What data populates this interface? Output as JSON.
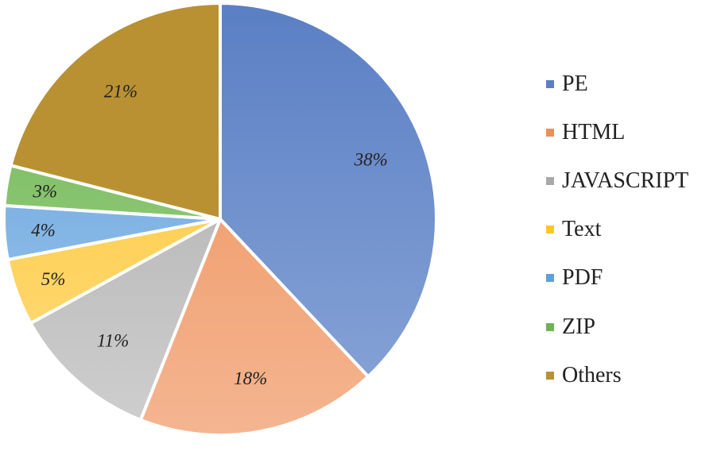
{
  "chart_data": {
    "type": "pie",
    "categories": [
      "PE",
      "HTML",
      "JAVASCRIPT",
      "Text",
      "PDF",
      "ZIP",
      "Others"
    ],
    "values": [
      38,
      18,
      11,
      5,
      4,
      3,
      21
    ],
    "labels": [
      "38%",
      "18%",
      "11%",
      "5%",
      "4%",
      "3%",
      "21%"
    ],
    "colors": [
      "#5b7fc4",
      "#ee8f55",
      "#a9a9a9",
      "#fec52b",
      "#5f9fdb",
      "#6db452",
      "#b99132"
    ],
    "gradient_light": [
      "#8aa6d8",
      "#f4b591",
      "#cfcfcf",
      "#fedc82",
      "#a3c9ee",
      "#a7d68f",
      "#b99132"
    ],
    "legend_position": "right",
    "start_angle_deg": 0,
    "direction": "clockwise"
  }
}
